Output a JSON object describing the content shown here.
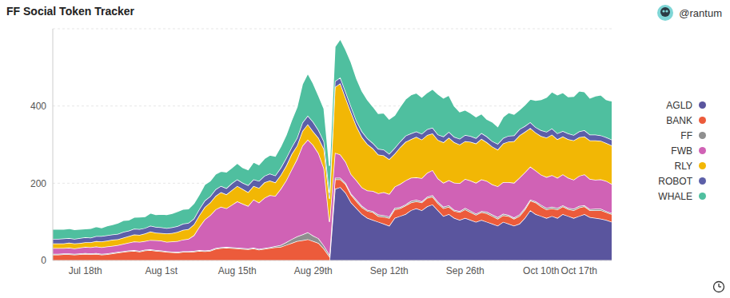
{
  "chart_data": {
    "type": "area",
    "title": "FF Social Token Tracker",
    "author": "@rantum",
    "stacked": true,
    "grid": true,
    "legend": "right",
    "categories": [
      null,
      null,
      null,
      null,
      null,
      null,
      "Jul 18th",
      null,
      null,
      null,
      null,
      null,
      null,
      null,
      null,
      null,
      null,
      null,
      null,
      null,
      "Aug 1st",
      null,
      null,
      null,
      null,
      null,
      null,
      null,
      null,
      null,
      null,
      null,
      null,
      null,
      "Aug 15th",
      null,
      null,
      null,
      null,
      null,
      null,
      null,
      null,
      null,
      null,
      null,
      null,
      null,
      "Aug 29th",
      null,
      null,
      null,
      null,
      null,
      null,
      null,
      null,
      null,
      null,
      null,
      null,
      null,
      "Sep 12th",
      null,
      null,
      null,
      null,
      null,
      null,
      null,
      null,
      null,
      null,
      null,
      null,
      null,
      "Sep 26th",
      null,
      null,
      null,
      null,
      null,
      null,
      null,
      null,
      null,
      null,
      null,
      null,
      null,
      "Oct 10th",
      null,
      null,
      null,
      null,
      null,
      null,
      "Oct 17th",
      null,
      null,
      null,
      null,
      null,
      null
    ],
    "ylim": [
      0,
      600
    ],
    "yticks": [
      0,
      200,
      400
    ],
    "series": [
      {
        "name": "AGLD",
        "color": "#5a559e",
        "values": [
          0,
          0,
          0,
          0,
          0,
          0,
          0,
          0,
          0,
          0,
          0,
          0,
          0,
          0,
          0,
          0,
          0,
          0,
          0,
          0,
          0,
          0,
          0,
          0,
          0,
          0,
          0,
          0,
          0,
          0,
          0,
          0,
          0,
          0,
          0,
          0,
          0,
          0,
          0,
          0,
          0,
          0,
          0,
          0,
          0,
          0,
          0,
          0,
          0,
          0,
          0,
          0,
          185,
          190,
          175,
          150,
          135,
          120,
          110,
          105,
          100,
          95,
          90,
          110,
          115,
          120,
          130,
          135,
          130,
          140,
          145,
          130,
          115,
          120,
          110,
          105,
          110,
          105,
          100,
          105,
          100,
          95,
          90,
          100,
          95,
          90,
          95,
          110,
          130,
          120,
          115,
          110,
          115,
          110,
          120,
          115,
          110,
          115,
          120,
          112,
          110,
          108,
          105,
          100
        ]
      },
      {
        "name": "BANK",
        "color": "#ec5b3b",
        "values": [
          15,
          15,
          16,
          16,
          15,
          16,
          17,
          16,
          17,
          15,
          16,
          18,
          20,
          22,
          24,
          25,
          23,
          26,
          27,
          25,
          24,
          22,
          21,
          20,
          22,
          22,
          23,
          25,
          24,
          25,
          30,
          32,
          33,
          32,
          31,
          30,
          29,
          31,
          28,
          30,
          32,
          34,
          35,
          40,
          45,
          50,
          52,
          55,
          50,
          45,
          30,
          10,
          25,
          20,
          22,
          20,
          18,
          17,
          18,
          20,
          15,
          18,
          20,
          22,
          20,
          22,
          20,
          18,
          20,
          22,
          20,
          18,
          20,
          19,
          18,
          20,
          22,
          20,
          18,
          20,
          22,
          20,
          18,
          17,
          20,
          18,
          20,
          22,
          25,
          30,
          25,
          22,
          20,
          22,
          20,
          18,
          20,
          22,
          20,
          18,
          20,
          22,
          20,
          20
        ]
      },
      {
        "name": "FF",
        "color": "#8f8f8f",
        "values": [
          2,
          2,
          2,
          2,
          2,
          2,
          2,
          2,
          2,
          2,
          2,
          2,
          2,
          2,
          2,
          2,
          2,
          2,
          2,
          2,
          2,
          2,
          2,
          2,
          2,
          2,
          2,
          2,
          2,
          2,
          2,
          2,
          2,
          2,
          2,
          2,
          2,
          2,
          2,
          2,
          2,
          3,
          5,
          7,
          10,
          12,
          15,
          18,
          14,
          12,
          8,
          5,
          4,
          4,
          3,
          3,
          4,
          4,
          3,
          3,
          4,
          4,
          4,
          4,
          3,
          3,
          4,
          4,
          3,
          3,
          4,
          4,
          4,
          4,
          3,
          3,
          4,
          4,
          3,
          3,
          4,
          4,
          4,
          4,
          3,
          3,
          4,
          4,
          3,
          3,
          4,
          4,
          4,
          4,
          3,
          3,
          4,
          4,
          3,
          3,
          4,
          4,
          3,
          3
        ]
      },
      {
        "name": "FWB",
        "color": "#d062b5",
        "values": [
          15,
          15,
          14,
          15,
          14,
          15,
          16,
          16,
          17,
          17,
          18,
          18,
          18,
          19,
          20,
          22,
          23,
          22,
          24,
          25,
          25,
          24,
          26,
          28,
          30,
          32,
          40,
          60,
          80,
          90,
          100,
          105,
          100,
          110,
          120,
          115,
          110,
          125,
          120,
          130,
          135,
          130,
          145,
          160,
          180,
          200,
          230,
          240,
          235,
          220,
          200,
          85,
          65,
          60,
          55,
          50,
          50,
          48,
          50,
          52,
          55,
          60,
          58,
          55,
          60,
          62,
          60,
          58,
          60,
          62,
          65,
          60,
          62,
          65,
          70,
          72,
          75,
          78,
          80,
          82,
          80,
          78,
          80,
          82,
          85,
          90,
          95,
          92,
          85,
          80,
          78,
          80,
          82,
          78,
          80,
          78,
          75,
          78,
          80,
          78,
          75,
          76,
          78,
          75
        ]
      },
      {
        "name": "RLY",
        "color": "#f2b705",
        "values": [
          12,
          12,
          12,
          13,
          13,
          12,
          12,
          13,
          14,
          15,
          15,
          16,
          15,
          16,
          17,
          18,
          18,
          20,
          22,
          20,
          20,
          22,
          22,
          24,
          25,
          25,
          28,
          30,
          32,
          33,
          35,
          38,
          36,
          38,
          40,
          38,
          36,
          35,
          38,
          40,
          38,
          35,
          36,
          38,
          40,
          35,
          38,
          40,
          35,
          40,
          50,
          60,
          170,
          185,
          165,
          160,
          140,
          130,
          120,
          110,
          100,
          95,
          90,
          85,
          95,
          100,
          100,
          105,
          100,
          98,
          95,
          100,
          105,
          110,
          105,
          100,
          98,
          100,
          102,
          105,
          100,
          98,
          95,
          100,
          105,
          108,
          110,
          105,
          100,
          98,
          100,
          102,
          105,
          100,
          98,
          100,
          102,
          100,
          98,
          100,
          102,
          100,
          98,
          100
        ]
      },
      {
        "name": "ROBOT",
        "color": "#5c5fa8",
        "values": [
          12,
          12,
          13,
          12,
          12,
          13,
          13,
          12,
          13,
          14,
          14,
          13,
          14,
          15,
          14,
          15,
          15,
          14,
          15,
          15,
          15,
          14,
          15,
          15,
          16,
          16,
          15,
          16,
          17,
          16,
          17,
          16,
          16,
          18,
          17,
          16,
          18,
          17,
          18,
          17,
          18,
          18,
          19,
          20,
          18,
          20,
          22,
          22,
          25,
          20,
          20,
          15,
          15,
          15,
          16,
          15,
          14,
          15,
          15,
          14,
          15,
          15,
          14,
          15,
          15,
          16,
          15,
          14,
          15,
          15,
          15,
          14,
          15,
          15,
          14,
          15,
          16,
          15,
          14,
          15,
          15,
          14,
          15,
          14,
          15,
          15,
          16,
          15,
          15,
          14,
          15,
          15,
          16,
          15,
          14,
          15,
          14,
          15,
          16,
          15,
          15,
          14,
          15,
          15
        ]
      },
      {
        "name": "WHALE",
        "color": "#4fbf9f",
        "values": [
          25,
          25,
          24,
          25,
          24,
          23,
          22,
          24,
          25,
          22,
          25,
          26,
          28,
          30,
          28,
          30,
          32,
          30,
          33,
          32,
          34,
          35,
          36,
          38,
          38,
          37,
          40,
          38,
          42,
          40,
          40,
          38,
          42,
          40,
          42,
          40,
          40,
          45,
          42,
          45,
          48,
          50,
          55,
          60,
          70,
          80,
          100,
          110,
          100,
          90,
          85,
          70,
          90,
          100,
          110,
          115,
          110,
          105,
          100,
          95,
          92,
          95,
          90,
          85,
          90,
          95,
          100,
          100,
          95,
          95,
          100,
          105,
          100,
          95,
          80,
          70,
          65,
          60,
          55,
          50,
          45,
          50,
          45,
          55,
          60,
          55,
          50,
          55,
          60,
          70,
          80,
          90,
          95,
          100,
          100,
          95,
          100,
          105,
          100,
          95,
          100,
          105,
          98,
          100
        ]
      }
    ]
  }
}
